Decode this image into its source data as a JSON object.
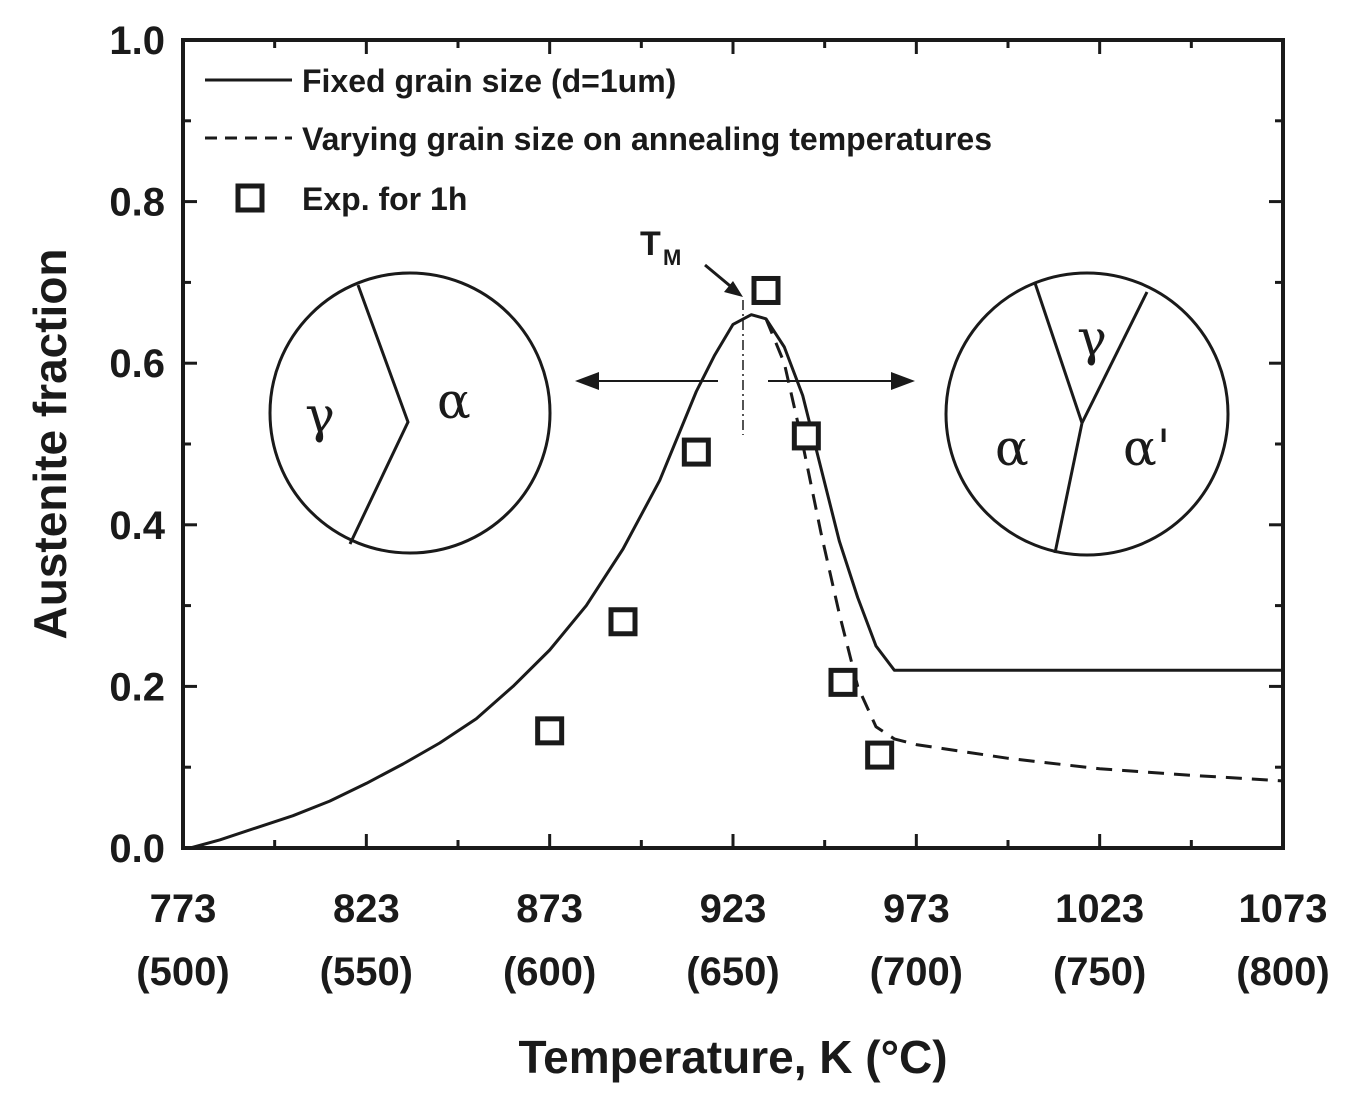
{
  "chart_data": {
    "type": "line",
    "xlabel": "Temperature, K (°C)",
    "ylabel": "Austenite fraction",
    "xlim": [
      773,
      1073
    ],
    "ylim": [
      0.0,
      1.0
    ],
    "x_ticks": [
      {
        "value": 773,
        "label": "773",
        "sub": "(500)"
      },
      {
        "value": 823,
        "label": "823",
        "sub": "(550)"
      },
      {
        "value": 873,
        "label": "873",
        "sub": "(600)"
      },
      {
        "value": 923,
        "label": "923",
        "sub": "(650)"
      },
      {
        "value": 973,
        "label": "973",
        "sub": "(700)"
      },
      {
        "value": 1023,
        "label": "1023",
        "sub": "(750)"
      },
      {
        "value": 1073,
        "label": "1073",
        "sub": "(800)"
      }
    ],
    "y_ticks": [
      {
        "value": 0.0,
        "label": "0.0"
      },
      {
        "value": 0.2,
        "label": "0.2"
      },
      {
        "value": 0.4,
        "label": "0.4"
      },
      {
        "value": 0.6,
        "label": "0.6"
      },
      {
        "value": 0.8,
        "label": "0.8"
      },
      {
        "value": 1.0,
        "label": "1.0"
      }
    ],
    "grid": false,
    "legend_position": "top-left",
    "series": [
      {
        "name": "Fixed grain size (d=1um)",
        "style": "solid",
        "points": [
          [
            775,
            0.0
          ],
          [
            783,
            0.01
          ],
          [
            793,
            0.025
          ],
          [
            803,
            0.04
          ],
          [
            813,
            0.058
          ],
          [
            823,
            0.08
          ],
          [
            833,
            0.104
          ],
          [
            843,
            0.13
          ],
          [
            853,
            0.16
          ],
          [
            863,
            0.2
          ],
          [
            873,
            0.245
          ],
          [
            883,
            0.3
          ],
          [
            893,
            0.37
          ],
          [
            903,
            0.455
          ],
          [
            913,
            0.565
          ],
          [
            918,
            0.61
          ],
          [
            923,
            0.648
          ],
          [
            928,
            0.66
          ],
          [
            932,
            0.655
          ],
          [
            937,
            0.62
          ],
          [
            942,
            0.56
          ],
          [
            947,
            0.47
          ],
          [
            952,
            0.38
          ],
          [
            957,
            0.31
          ],
          [
            962,
            0.25
          ],
          [
            967,
            0.22
          ],
          [
            973,
            0.22
          ],
          [
            1023,
            0.22
          ],
          [
            1073,
            0.22
          ]
        ]
      },
      {
        "name": "Varying grain size on annealing temperatures",
        "style": "dashed",
        "points": [
          [
            932,
            0.655
          ],
          [
            937,
            0.6
          ],
          [
            942,
            0.5
          ],
          [
            947,
            0.39
          ],
          [
            952,
            0.29
          ],
          [
            957,
            0.2
          ],
          [
            962,
            0.15
          ],
          [
            967,
            0.135
          ],
          [
            973,
            0.128
          ],
          [
            998,
            0.111
          ],
          [
            1023,
            0.098
          ],
          [
            1048,
            0.09
          ],
          [
            1073,
            0.083
          ]
        ]
      },
      {
        "name": "Exp. for 1h",
        "style": "markers",
        "points": [
          [
            873,
            0.145
          ],
          [
            893,
            0.28
          ],
          [
            913,
            0.49
          ],
          [
            932,
            0.69
          ],
          [
            943,
            0.51
          ],
          [
            953,
            0.205
          ],
          [
            963,
            0.115
          ]
        ]
      }
    ],
    "annotations": {
      "tm_label": "T",
      "tm_sub": "M",
      "left_circle": {
        "gamma": "γ",
        "alpha": "α"
      },
      "right_circle": {
        "gamma": "γ",
        "alpha": "α",
        "alpha_prime": "α'"
      }
    }
  }
}
